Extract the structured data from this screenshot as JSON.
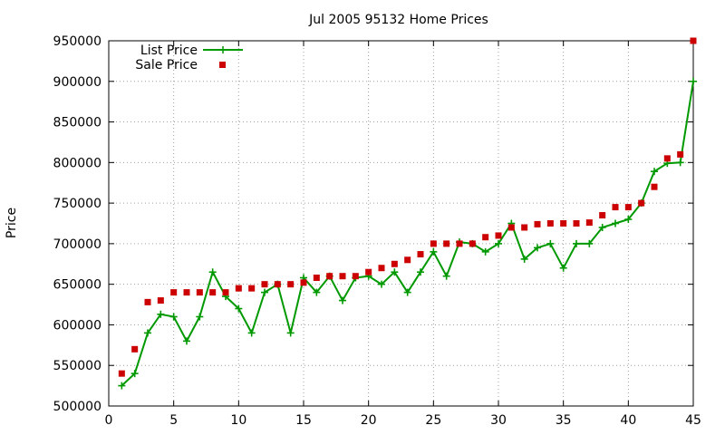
{
  "chart_data": {
    "type": "line",
    "title": "Jul 2005 95132 Home Prices",
    "xlabel": "",
    "ylabel": "Price",
    "xlim": [
      0,
      45
    ],
    "ylim": [
      500000,
      950000
    ],
    "xticks": [
      0,
      5,
      10,
      15,
      20,
      25,
      30,
      35,
      40,
      45
    ],
    "yticks": [
      500000,
      550000,
      600000,
      650000,
      700000,
      750000,
      800000,
      850000,
      900000,
      950000
    ],
    "grid": true,
    "legend_position": "top-left",
    "x": [
      1,
      2,
      3,
      4,
      5,
      6,
      7,
      8,
      9,
      10,
      11,
      12,
      13,
      14,
      15,
      16,
      17,
      18,
      19,
      20,
      21,
      22,
      23,
      24,
      25,
      26,
      27,
      28,
      29,
      30,
      31,
      32,
      33,
      34,
      35,
      36,
      37,
      38,
      39,
      40,
      41,
      42,
      43,
      44,
      45
    ],
    "series": [
      {
        "name": "List Price",
        "style": "linespoints",
        "color": "#009900",
        "marker": "plus",
        "values": [
          525000,
          540000,
          590000,
          613000,
          610000,
          580000,
          610000,
          665000,
          635000,
          620000,
          590000,
          640000,
          650000,
          590000,
          658000,
          640000,
          660000,
          630000,
          658000,
          660000,
          650000,
          665000,
          640000,
          665000,
          690000,
          660000,
          702000,
          700000,
          690000,
          700000,
          725000,
          681000,
          695000,
          700000,
          670000,
          700000,
          700000,
          720000,
          725000,
          730000,
          750000,
          789000,
          799000,
          800000,
          900000
        ]
      },
      {
        "name": "Sale Price",
        "style": "points",
        "color": "#cc0000",
        "marker": "square",
        "values": [
          540000,
          570000,
          628000,
          630000,
          640000,
          640000,
          640000,
          640000,
          640000,
          645000,
          645000,
          650000,
          650000,
          650000,
          652000,
          658000,
          660000,
          660000,
          660000,
          665000,
          670000,
          675000,
          680000,
          687000,
          700000,
          700000,
          700000,
          700000,
          708000,
          710000,
          720000,
          720000,
          724000,
          725000,
          725000,
          725000,
          726000,
          735000,
          745000,
          745000,
          750000,
          770000,
          805000,
          810000,
          950000
        ]
      }
    ]
  }
}
